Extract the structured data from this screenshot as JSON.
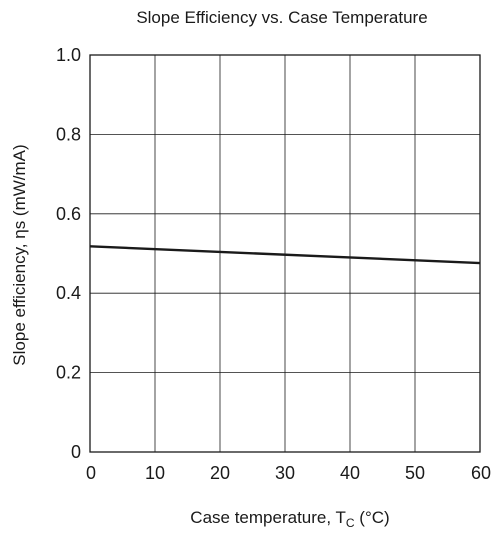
{
  "chart_data": {
    "type": "line",
    "title": "Slope Efficiency vs. Case Temperature",
    "xlabel": {
      "main": "Case temperature,  T",
      "sub": "C",
      "unit": "  (°C)"
    },
    "ylabel": "Slope efficiency,  ηs  (mW/mA)",
    "xlim": [
      0,
      60
    ],
    "ylim": [
      0,
      1.0
    ],
    "x_ticks": [
      "0",
      "10",
      "20",
      "30",
      "40",
      "50",
      "60"
    ],
    "y_ticks": [
      "0",
      "0.2",
      "0.4",
      "0.6",
      "0.8",
      "1.0"
    ],
    "grid": true,
    "series": [
      {
        "color": "#1a1a1a",
        "x": [
          0,
          60
        ],
        "y": [
          0.518,
          0.476
        ]
      }
    ]
  }
}
